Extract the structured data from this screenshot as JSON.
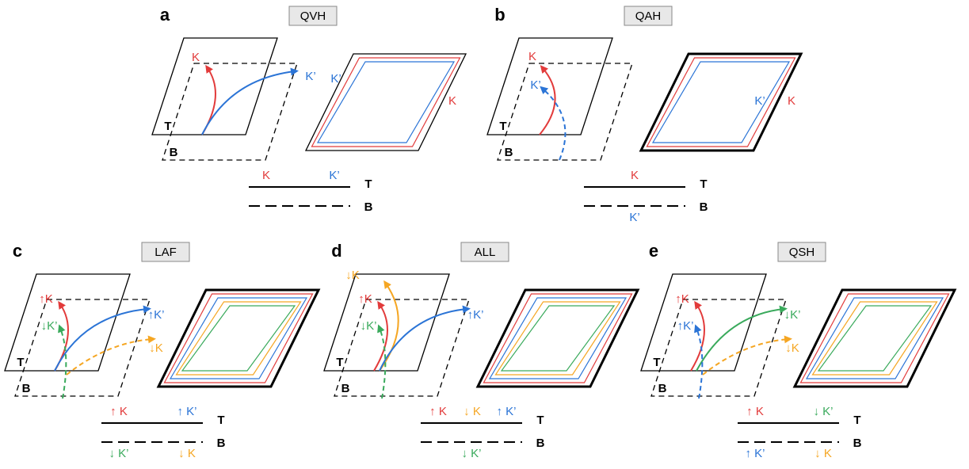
{
  "panels": [
    {
      "letter": "a",
      "phase": "QVH",
      "diagram_labels": [
        {
          "text": "K",
          "color": "#e23b3b"
        },
        {
          "text": "K’",
          "color": "#2b74d6"
        }
      ],
      "edge_labels": [
        {
          "text": "K’",
          "color": "#2b74d6"
        },
        {
          "text": "K",
          "color": "#e23b3b"
        }
      ],
      "layers": [
        "T",
        "B"
      ],
      "legend_top": [
        {
          "text": "K",
          "color": "#e23b3b"
        },
        {
          "text": "K’",
          "color": "#2b74d6"
        }
      ],
      "legend_bottom": []
    },
    {
      "letter": "b",
      "phase": "QAH",
      "diagram_labels": [
        {
          "text": "K",
          "color": "#e23b3b"
        },
        {
          "text": "K’",
          "color": "#2b74d6"
        }
      ],
      "edge_labels": [
        {
          "text": "K’",
          "color": "#2b74d6"
        },
        {
          "text": "K",
          "color": "#e23b3b"
        }
      ],
      "layers": [
        "T",
        "B"
      ],
      "legend_top": [
        {
          "text": "K",
          "color": "#e23b3b"
        }
      ],
      "legend_bottom": [
        {
          "text": "K’",
          "color": "#2b74d6"
        }
      ]
    },
    {
      "letter": "c",
      "phase": "LAF",
      "diagram_labels": [
        {
          "text": "↑K",
          "color": "#e23b3b"
        },
        {
          "text": "↓K’",
          "color": "#3aaa5c"
        },
        {
          "text": "↑K’",
          "color": "#2b74d6"
        },
        {
          "text": "↓K",
          "color": "#f5a623"
        }
      ],
      "edge_labels": [],
      "layers": [
        "T",
        "B"
      ],
      "legend_top": [
        {
          "text": "↑ K",
          "color": "#e23b3b"
        },
        {
          "text": "↑ K’",
          "color": "#2b74d6"
        }
      ],
      "legend_bottom": [
        {
          "text": "↓ K’",
          "color": "#3aaa5c"
        },
        {
          "text": "↓ K",
          "color": "#f5a623"
        }
      ]
    },
    {
      "letter": "d",
      "phase": "ALL",
      "diagram_labels": [
        {
          "text": "↓K",
          "color": "#f5a623"
        },
        {
          "text": "↑K",
          "color": "#e23b3b"
        },
        {
          "text": "↓K’",
          "color": "#3aaa5c"
        },
        {
          "text": "↑K’",
          "color": "#2b74d6"
        }
      ],
      "edge_labels": [],
      "layers": [
        "T",
        "B"
      ],
      "legend_top": [
        {
          "text": "↑ K",
          "color": "#e23b3b"
        },
        {
          "text": "↓ K",
          "color": "#f5a623"
        },
        {
          "text": "↑ K’",
          "color": "#2b74d6"
        }
      ],
      "legend_bottom": [
        {
          "text": "↓ K’",
          "color": "#3aaa5c"
        }
      ]
    },
    {
      "letter": "e",
      "phase": "QSH",
      "diagram_labels": [
        {
          "text": "↑K",
          "color": "#e23b3b"
        },
        {
          "text": "↑K’",
          "color": "#2b74d6"
        },
        {
          "text": "↓K’",
          "color": "#3aaa5c"
        },
        {
          "text": "↓K",
          "color": "#f5a623"
        }
      ],
      "edge_labels": [],
      "layers": [
        "T",
        "B"
      ],
      "legend_top": [
        {
          "text": "↑ K",
          "color": "#e23b3b"
        },
        {
          "text": "↓ K’",
          "color": "#3aaa5c"
        }
      ],
      "legend_bottom": [
        {
          "text": "↑ K’",
          "color": "#2b74d6"
        },
        {
          "text": "↓ K",
          "color": "#f5a623"
        }
      ]
    }
  ]
}
